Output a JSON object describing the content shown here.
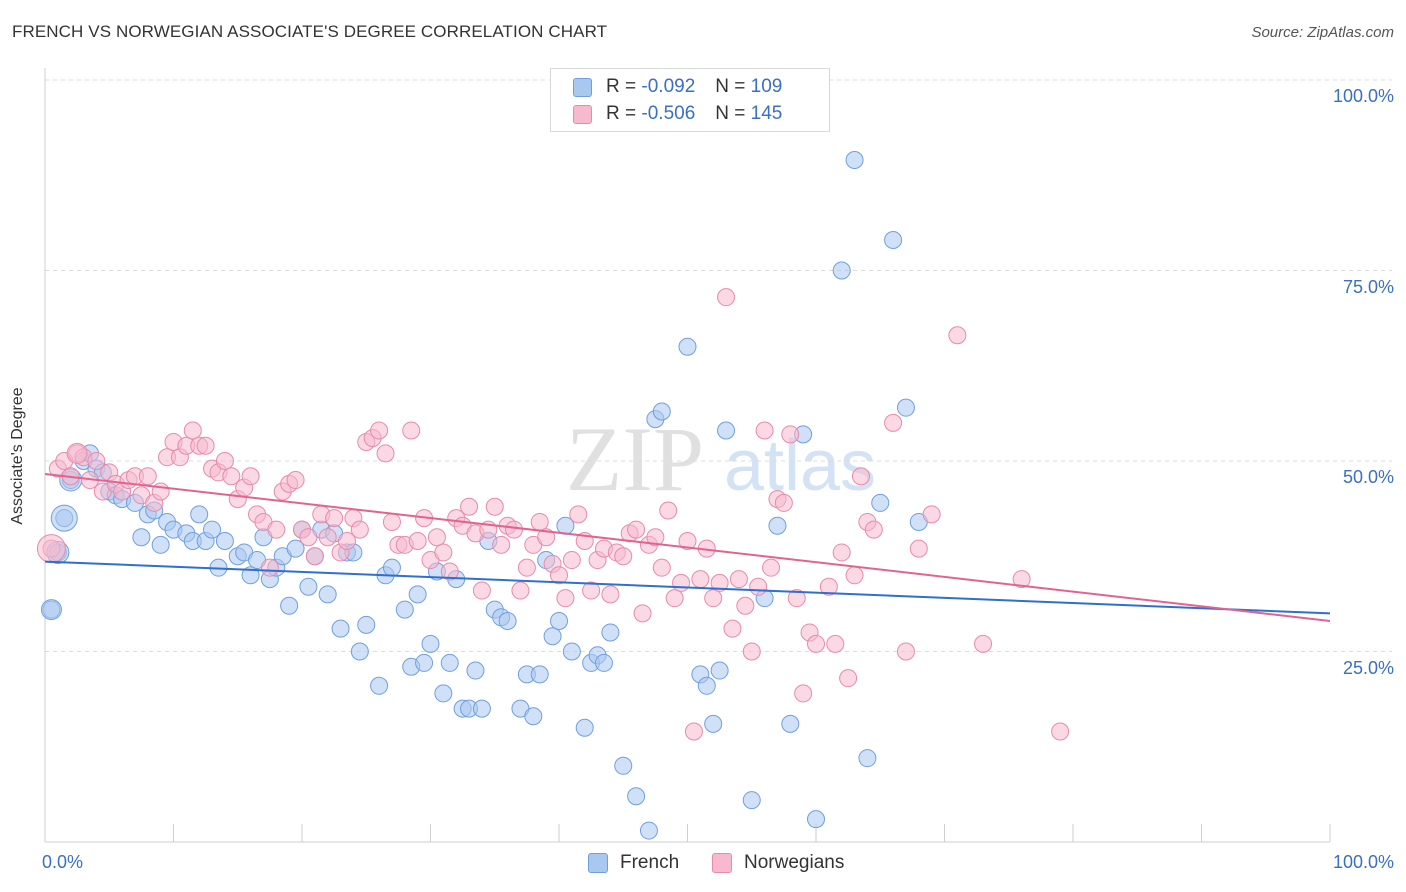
{
  "title": "FRENCH VS NORWEGIAN ASSOCIATE'S DEGREE CORRELATION CHART",
  "source": "Source: ZipAtlas.com",
  "watermark": {
    "zip": "ZIP",
    "atlas": "atlas"
  },
  "legend": [
    {
      "r_label": "R =",
      "r_value": "-0.092",
      "n_label": "N =",
      "n_value": "109",
      "color": "#a9c8f0",
      "edge": "#6f9fe0"
    },
    {
      "r_label": "R =",
      "r_value": "-0.506",
      "n_label": "N =",
      "n_value": "145",
      "color": "#f6b9ce",
      "edge": "#e88aab"
    }
  ],
  "bottom_legend": [
    "French",
    "Norwegians"
  ],
  "chart_data": {
    "type": "scatter",
    "title": "FRENCH VS NORWEGIAN ASSOCIATE'S DEGREE CORRELATION CHART",
    "xlabel": "",
    "ylabel": "Associate's Degree",
    "xlim": [
      0,
      100
    ],
    "ylim": [
      0,
      100
    ],
    "x_tick_labels": [
      "0.0%",
      "100.0%"
    ],
    "y_tick_labels": [
      "25.0%",
      "50.0%",
      "75.0%",
      "100.0%"
    ],
    "y_ticks": [
      25,
      50,
      75,
      100
    ],
    "grid": "horizontal dashed",
    "legend_position": "top-center",
    "series": [
      {
        "name": "French",
        "color": "#a9c8f0",
        "edge": "#6f9fe0",
        "trend_color": "#2f6fcf",
        "trend": [
          [
            0,
            36.8
          ],
          [
            100,
            30
          ]
        ],
        "points": [
          [
            0.5,
            30.5
          ],
          [
            1,
            38
          ],
          [
            1.5,
            42.5
          ],
          [
            2,
            47.5
          ],
          [
            3,
            50
          ],
          [
            3.5,
            51
          ],
          [
            4,
            49
          ],
          [
            4.5,
            48.5
          ],
          [
            5,
            46
          ],
          [
            5.5,
            45.5
          ],
          [
            6,
            45
          ],
          [
            7,
            44.5
          ],
          [
            7.5,
            40
          ],
          [
            8,
            43
          ],
          [
            8.5,
            43.5
          ],
          [
            9,
            39
          ],
          [
            9.5,
            42
          ],
          [
            10,
            41
          ],
          [
            11,
            40.5
          ],
          [
            11.5,
            39.5
          ],
          [
            12,
            43
          ],
          [
            12.5,
            39.5
          ],
          [
            13,
            41
          ],
          [
            13.5,
            36
          ],
          [
            14,
            39.5
          ],
          [
            15,
            37.5
          ],
          [
            15.5,
            38
          ],
          [
            16,
            35
          ],
          [
            16.5,
            37
          ],
          [
            17,
            40
          ],
          [
            17.5,
            34.5
          ],
          [
            18,
            36
          ],
          [
            18.5,
            37.5
          ],
          [
            19,
            31
          ],
          [
            19.5,
            38.5
          ],
          [
            20,
            41
          ],
          [
            20.5,
            33.5
          ],
          [
            21,
            37.5
          ],
          [
            21.5,
            41
          ],
          [
            22,
            32.5
          ],
          [
            22.5,
            40.5
          ],
          [
            23,
            28
          ],
          [
            23.5,
            38
          ],
          [
            24,
            38
          ],
          [
            24.5,
            25
          ],
          [
            25,
            28.5
          ],
          [
            26,
            20.5
          ],
          [
            26.5,
            35
          ],
          [
            27,
            36
          ],
          [
            28,
            30.5
          ],
          [
            28.5,
            23
          ],
          [
            29,
            32.5
          ],
          [
            29.5,
            23.5
          ],
          [
            30,
            26
          ],
          [
            30.5,
            35.5
          ],
          [
            31,
            19.5
          ],
          [
            31.5,
            23.5
          ],
          [
            32,
            34.5
          ],
          [
            32.5,
            17.5
          ],
          [
            33,
            17.5
          ],
          [
            33.5,
            22.5
          ],
          [
            34,
            17.5
          ],
          [
            34.5,
            39.5
          ],
          [
            35,
            30.5
          ],
          [
            35.5,
            29.5
          ],
          [
            36,
            29
          ],
          [
            37,
            17.5
          ],
          [
            37.5,
            22
          ],
          [
            38,
            16.5
          ],
          [
            38.5,
            22
          ],
          [
            39,
            37
          ],
          [
            39.5,
            27
          ],
          [
            40,
            29
          ],
          [
            40.5,
            41.5
          ],
          [
            41,
            25
          ],
          [
            42,
            15
          ],
          [
            42.5,
            23.5
          ],
          [
            43,
            24.5
          ],
          [
            43.5,
            23.5
          ],
          [
            44,
            27.5
          ],
          [
            45,
            10
          ],
          [
            46,
            6
          ],
          [
            47,
            1.5
          ],
          [
            47.5,
            55.5
          ],
          [
            48,
            56.5
          ],
          [
            50,
            65
          ],
          [
            51,
            22
          ],
          [
            51.5,
            20.5
          ],
          [
            52,
            15.5
          ],
          [
            52.5,
            22.5
          ],
          [
            53,
            54
          ],
          [
            55,
            5.5
          ],
          [
            56,
            32
          ],
          [
            57,
            41.5
          ],
          [
            58,
            15.5
          ],
          [
            59,
            53.5
          ],
          [
            60,
            3
          ],
          [
            62,
            75
          ],
          [
            63,
            89.5
          ],
          [
            64,
            11
          ],
          [
            65,
            44.5
          ],
          [
            66,
            79
          ],
          [
            67,
            57
          ],
          [
            68,
            42
          ]
        ]
      },
      {
        "name": "Norwegians",
        "color": "#f6b9ce",
        "edge": "#e88aab",
        "trend_color": "#e0648f",
        "trend": [
          [
            0,
            48.3
          ],
          [
            100,
            29
          ]
        ],
        "points": [
          [
            0.5,
            38.5
          ],
          [
            1,
            49
          ],
          [
            1.5,
            50
          ],
          [
            2,
            48
          ],
          [
            2.5,
            51
          ],
          [
            3,
            50.5
          ],
          [
            3.5,
            47.5
          ],
          [
            4,
            50
          ],
          [
            4.5,
            46
          ],
          [
            5,
            48.5
          ],
          [
            5.5,
            47
          ],
          [
            6,
            46
          ],
          [
            6.5,
            47.5
          ],
          [
            7,
            48
          ],
          [
            7.5,
            45.5
          ],
          [
            8,
            48
          ],
          [
            8.5,
            44.5
          ],
          [
            9,
            46
          ],
          [
            9.5,
            50.5
          ],
          [
            10,
            52.5
          ],
          [
            10.5,
            50.5
          ],
          [
            11,
            52
          ],
          [
            11.5,
            54
          ],
          [
            12,
            52
          ],
          [
            12.5,
            52
          ],
          [
            13,
            49
          ],
          [
            13.5,
            48.5
          ],
          [
            14,
            50
          ],
          [
            14.5,
            48
          ],
          [
            15,
            45
          ],
          [
            15.5,
            46.5
          ],
          [
            16,
            48
          ],
          [
            16.5,
            43
          ],
          [
            17,
            42
          ],
          [
            17.5,
            36
          ],
          [
            18,
            41
          ],
          [
            18.5,
            46
          ],
          [
            19,
            47
          ],
          [
            19.5,
            47.5
          ],
          [
            20,
            41
          ],
          [
            20.5,
            40
          ],
          [
            21,
            37.5
          ],
          [
            21.5,
            43
          ],
          [
            22,
            40
          ],
          [
            22.5,
            42.5
          ],
          [
            23,
            38
          ],
          [
            23.5,
            39.5
          ],
          [
            24,
            42.5
          ],
          [
            24.5,
            41
          ],
          [
            25,
            52.5
          ],
          [
            25.5,
            53
          ],
          [
            26,
            54
          ],
          [
            26.5,
            51
          ],
          [
            27,
            42
          ],
          [
            27.5,
            39
          ],
          [
            28,
            39
          ],
          [
            28.5,
            54
          ],
          [
            29,
            39.5
          ],
          [
            29.5,
            42.5
          ],
          [
            30,
            37
          ],
          [
            30.5,
            40
          ],
          [
            31,
            38
          ],
          [
            31.5,
            35.5
          ],
          [
            32,
            42.5
          ],
          [
            32.5,
            41.5
          ],
          [
            33,
            44
          ],
          [
            33.5,
            40.5
          ],
          [
            34,
            33
          ],
          [
            34.5,
            41
          ],
          [
            35,
            44
          ],
          [
            35.5,
            39
          ],
          [
            36,
            41.5
          ],
          [
            36.5,
            41
          ],
          [
            37,
            33
          ],
          [
            37.5,
            36
          ],
          [
            38,
            39
          ],
          [
            38.5,
            42
          ],
          [
            39,
            40
          ],
          [
            39.5,
            36.5
          ],
          [
            40,
            35
          ],
          [
            40.5,
            32
          ],
          [
            41,
            37
          ],
          [
            41.5,
            43
          ],
          [
            42,
            39.5
          ],
          [
            42.5,
            33
          ],
          [
            43,
            37
          ],
          [
            43.5,
            38.5
          ],
          [
            44,
            32.5
          ],
          [
            44.5,
            38
          ],
          [
            45,
            37.5
          ],
          [
            45.5,
            40.5
          ],
          [
            46,
            41
          ],
          [
            46.5,
            30
          ],
          [
            47,
            39
          ],
          [
            47.5,
            40
          ],
          [
            48,
            36
          ],
          [
            48.5,
            43.5
          ],
          [
            49,
            32
          ],
          [
            49.5,
            34
          ],
          [
            50,
            39.5
          ],
          [
            50.5,
            14.5
          ],
          [
            51,
            34.5
          ],
          [
            51.5,
            38.5
          ],
          [
            52,
            32
          ],
          [
            52.5,
            34
          ],
          [
            53,
            71.5
          ],
          [
            53.5,
            28
          ],
          [
            54,
            34.5
          ],
          [
            54.5,
            31
          ],
          [
            55,
            25
          ],
          [
            55.5,
            33.5
          ],
          [
            56,
            54
          ],
          [
            56.5,
            36
          ],
          [
            57,
            45
          ],
          [
            57.5,
            44.5
          ],
          [
            58,
            53.5
          ],
          [
            58.5,
            32
          ],
          [
            59,
            19.5
          ],
          [
            59.5,
            27.5
          ],
          [
            60,
            26
          ],
          [
            61,
            33.5
          ],
          [
            61.5,
            26
          ],
          [
            62,
            38
          ],
          [
            62.5,
            21.5
          ],
          [
            63,
            35
          ],
          [
            63.5,
            48
          ],
          [
            64,
            42
          ],
          [
            64.5,
            41
          ],
          [
            66,
            55
          ],
          [
            67,
            25
          ],
          [
            68,
            38.5
          ],
          [
            69,
            43
          ],
          [
            71,
            66.5
          ],
          [
            73,
            26
          ],
          [
            76,
            34.5
          ],
          [
            79,
            14.5
          ]
        ]
      }
    ]
  }
}
